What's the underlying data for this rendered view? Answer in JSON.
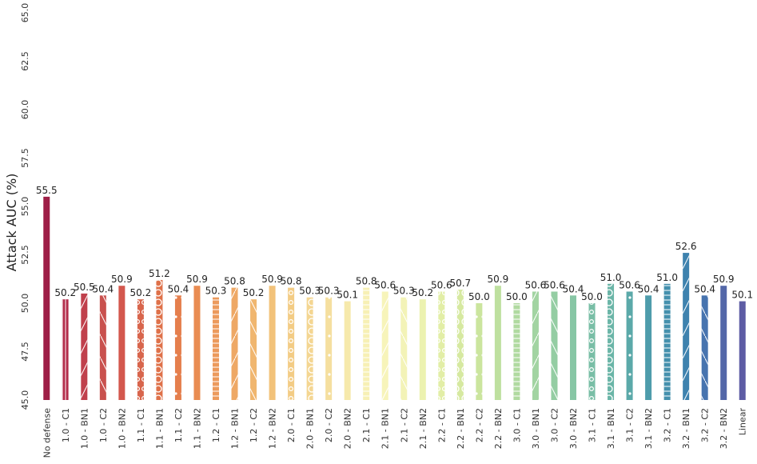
{
  "chart_data": {
    "type": "bar",
    "title": "",
    "xlabel": "",
    "ylabel": "Attack AUC (%)",
    "ylim": [
      45.0,
      65.0
    ],
    "yticks": [
      "45.0",
      "47.5",
      "50.0",
      "52.5",
      "55.0",
      "57.5",
      "60.0",
      "62.5",
      "65.0"
    ],
    "grid": false,
    "categories": [
      "No defense",
      "1.0 - C1",
      "1.0 - BN1",
      "1.0 - C2",
      "1.0 - BN2",
      "1.1 - C1",
      "1.1 - BN1",
      "1.1 - C2",
      "1.1 - BN2",
      "1.2 - C1",
      "1.2 - BN1",
      "1.2 - C2",
      "1.2 - BN2",
      "2.0 - C1",
      "2.0 - BN1",
      "2.0 - C2",
      "2.0 - BN2",
      "2.1 - C1",
      "2.1 - BN1",
      "2.1 - C2",
      "2.1 - BN2",
      "2.2 - C1",
      "2.2 - BN1",
      "2.2 - C2",
      "2.2 - BN2",
      "3.0 - C1",
      "3.0 - BN1",
      "3.0 - C2",
      "3.0 - BN2",
      "3.1 - C1",
      "3.1 - BN1",
      "3.1 - C2",
      "3.1 - BN2",
      "3.2 - C1",
      "3.2 - BN1",
      "3.2 - C2",
      "3.2 - BN2",
      "Linear"
    ],
    "values": [
      55.5,
      50.2,
      50.5,
      50.4,
      50.9,
      50.2,
      51.2,
      50.4,
      50.9,
      50.3,
      50.8,
      50.2,
      50.9,
      50.8,
      50.3,
      50.3,
      50.1,
      50.8,
      50.6,
      50.3,
      50.2,
      50.6,
      50.7,
      50.0,
      50.9,
      50.0,
      50.6,
      50.6,
      50.4,
      50.0,
      51.0,
      50.6,
      50.4,
      51.0,
      52.6,
      50.4,
      50.9,
      50.1
    ],
    "value_labels": [
      "55.5",
      "50.2",
      "50.5",
      "50.4",
      "50.9",
      "50.2",
      "51.2",
      "50.4",
      "50.9",
      "50.3",
      "50.8",
      "50.2",
      "50.9",
      "50.8",
      "50.3",
      "50.3",
      "50.1",
      "50.8",
      "50.6",
      "50.3",
      "50.2",
      "50.6",
      "50.7",
      "50.0",
      "50.9",
      "50.0",
      "50.6",
      "50.6",
      "50.4",
      "50.0",
      "51.0",
      "50.6",
      "50.4",
      "51.0",
      "52.6",
      "50.4",
      "50.9",
      "50.1"
    ],
    "colors": [
      "#9e1f47",
      "#b32c4b",
      "#c0404c",
      "#c9514e",
      "#d3574d",
      "#d8654c",
      "#df7149",
      "#e57f4d",
      "#e98c52",
      "#ec9a5c",
      "#eea865",
      "#f0b66f",
      "#f2c27a",
      "#f3cc85",
      "#f4d692",
      "#f5df9f",
      "#f6e9ab",
      "#f7f0b5",
      "#f7f4ba",
      "#f3f3b7",
      "#ecf2b0",
      "#e2ee a6",
      "#d6e9a0",
      "#cbe59e",
      "#bee09f",
      "#b0daa0",
      "#a2d4a2",
      "#94cda3",
      "#87c6a5",
      "#79bea6",
      "#6ab5a7",
      "#5ba9a9",
      "#4e9cab",
      "#4490ad",
      "#3e82ae",
      "#4774af",
      "#5367a8",
      "#5d5ca4"
    ],
    "patterns": [
      "none",
      "vlines",
      "diag",
      "backdiag",
      "none",
      "dots-ring",
      "rings",
      "dots",
      "none",
      "hlines",
      "diag",
      "backdiag",
      "none",
      "dots-ring",
      "rings",
      "dots",
      "none",
      "hlines",
      "diag",
      "backdiag",
      "none",
      "dots-ring",
      "rings",
      "dots",
      "none",
      "hlines",
      "diag",
      "backdiag",
      "none",
      "dots-ring",
      "rings",
      "dots",
      "none",
      "hlines",
      "diag",
      "backdiag",
      "none",
      "none"
    ]
  }
}
